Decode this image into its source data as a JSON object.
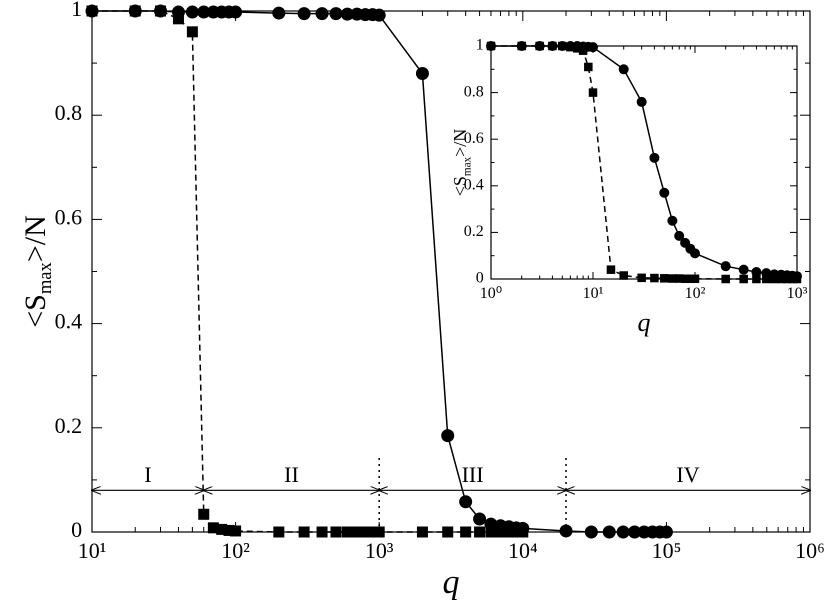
{
  "chart_data": [
    {
      "type": "line",
      "xlabel": "q",
      "ylabel_parts": [
        "<S",
        "max",
        ">/N"
      ],
      "xlog": true,
      "xlim": [
        10,
        1000000
      ],
      "xticks": [
        {
          "value": 10,
          "label": "10¹"
        },
        {
          "value": 100,
          "label": "10²"
        },
        {
          "value": 1000,
          "label": "10³"
        },
        {
          "value": 10000,
          "label": "10⁴"
        },
        {
          "value": 100000,
          "label": "10⁵"
        },
        {
          "value": 1000000,
          "label": "10⁶"
        }
      ],
      "ylim": [
        0,
        1
      ],
      "yticks": [
        0,
        0.2,
        0.4,
        0.6,
        0.8,
        1
      ],
      "series": [
        {
          "marker": "circle",
          "dash": "solid",
          "color": "#000000",
          "x": [
            10,
            20,
            30,
            40,
            50,
            60,
            70,
            80,
            90,
            100,
            200,
            300,
            400,
            500,
            600,
            700,
            800,
            900,
            1000,
            2000,
            3000,
            4000,
            5000,
            6000,
            7000,
            8000,
            9000,
            10000,
            20000,
            30000,
            40000,
            50000,
            60000,
            70000,
            80000,
            90000,
            100000
          ],
          "values": [
            1,
            1,
            1,
            0.998,
            0.998,
            0.998,
            0.998,
            0.998,
            0.998,
            0.998,
            0.996,
            0.995,
            0.995,
            0.995,
            0.994,
            0.994,
            0.993,
            0.993,
            0.992,
            0.88,
            0.185,
            0.058,
            0.025,
            0.015,
            0.012,
            0.01,
            0.008,
            0.007,
            0.002,
            0,
            0,
            0,
            0,
            0,
            0,
            0,
            0
          ]
        },
        {
          "marker": "square",
          "dash": "dashed",
          "color": "#000000",
          "x": [
            10,
            20,
            30,
            40,
            50,
            60,
            70,
            80,
            90,
            100,
            200,
            300,
            400,
            500,
            600,
            700,
            800,
            900,
            1000,
            2000,
            3000,
            4000,
            5000,
            6000,
            7000,
            8000,
            9000,
            10000
          ],
          "values": [
            1,
            1,
            1,
            0.985,
            0.96,
            0.034,
            0.008,
            0.005,
            0.003,
            0.002,
            0,
            0,
            0,
            0,
            0,
            0,
            0,
            0,
            0,
            0,
            0,
            0,
            0,
            0,
            0,
            0,
            0,
            0
          ]
        }
      ],
      "regions": [
        {
          "label": "I",
          "from": 10,
          "to": 60
        },
        {
          "label": "II",
          "from": 60,
          "to": 1000
        },
        {
          "label": "III",
          "from": 1000,
          "to": 20000
        },
        {
          "label": "IV",
          "from": 20000,
          "to": 1000000
        }
      ],
      "regions_y": 0.08,
      "dividers": [
        1000,
        20000
      ]
    },
    {
      "type": "line",
      "xlabel": "q",
      "ylabel_parts": [
        "<S",
        "max",
        ">/N"
      ],
      "xlog": true,
      "xlim": [
        1,
        1000
      ],
      "xticks": [
        {
          "value": 1,
          "label": "10⁰"
        },
        {
          "value": 10,
          "label": "10¹"
        },
        {
          "value": 100,
          "label": "10²"
        },
        {
          "value": 1000,
          "label": "10³"
        }
      ],
      "ylim": [
        0,
        1
      ],
      "yticks": [
        0,
        0.2,
        0.4,
        0.6,
        0.8,
        1
      ],
      "series": [
        {
          "marker": "circle",
          "dash": "solid",
          "color": "#000000",
          "x": [
            1,
            2,
            3,
            4,
            5,
            6,
            7,
            8,
            9,
            10,
            20,
            30,
            40,
            50,
            60,
            70,
            80,
            90,
            100,
            200,
            300,
            400,
            500,
            600,
            700,
            800,
            900,
            1000
          ],
          "values": [
            1,
            1,
            1,
            1,
            1,
            1,
            1,
            0.998,
            0.997,
            0.995,
            0.9,
            0.76,
            0.52,
            0.37,
            0.25,
            0.185,
            0.155,
            0.13,
            0.11,
            0.055,
            0.04,
            0.03,
            0.025,
            0.02,
            0.018,
            0.016,
            0.014,
            0.012
          ]
        },
        {
          "marker": "square",
          "dash": "dashed",
          "color": "#000000",
          "x": [
            1,
            2,
            3,
            4,
            5,
            6,
            7,
            8,
            9,
            10,
            15,
            20,
            30,
            40,
            50,
            60,
            70,
            80,
            90,
            100,
            200,
            300,
            400,
            500,
            600,
            700,
            800,
            900,
            1000
          ],
          "values": [
            1,
            1,
            1,
            1,
            1,
            0.995,
            0.99,
            0.98,
            0.91,
            0.8,
            0.04,
            0.015,
            0.005,
            0.004,
            0.003,
            0.002,
            0.002,
            0.001,
            0.001,
            0.001,
            0,
            0,
            0,
            0,
            0,
            0,
            0,
            0,
            0
          ]
        }
      ]
    }
  ]
}
